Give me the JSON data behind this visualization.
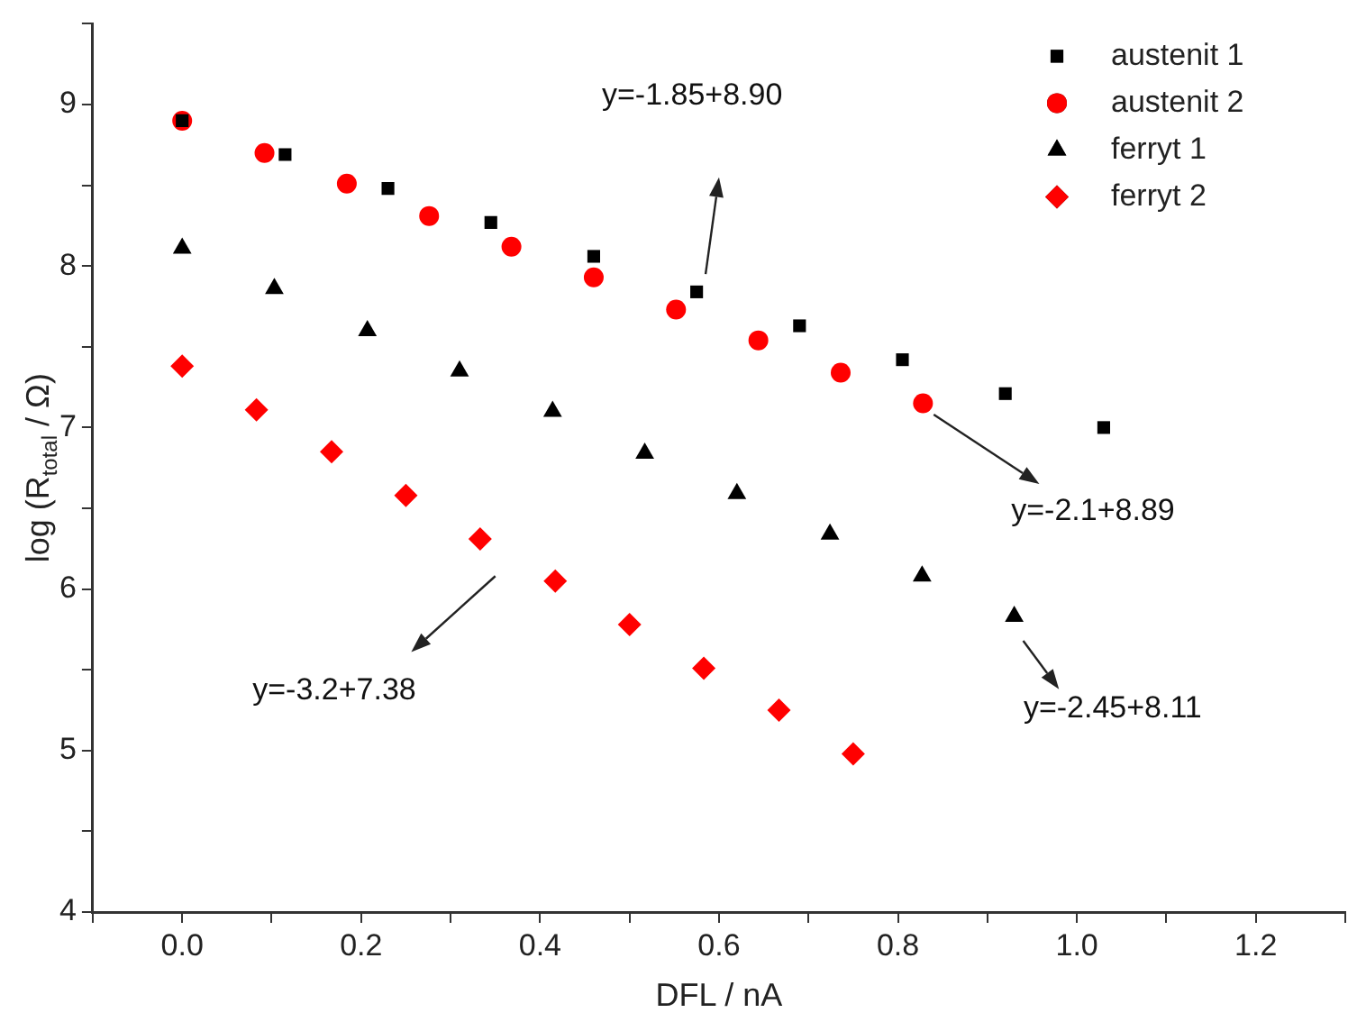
{
  "chart_data": {
    "type": "scatter",
    "xlabel": "DFL / nA",
    "ylabel": "log (R$_{total}$ / Ω)",
    "xlim": [
      -0.1,
      1.3
    ],
    "xticks": [
      {
        "value": -0.1,
        "label": null
      },
      {
        "value": 0,
        "label": "0.0"
      },
      {
        "value": 0.1,
        "label": null
      },
      {
        "value": 0.2,
        "label": "0.2"
      },
      {
        "value": 0.3,
        "label": null
      },
      {
        "value": 0.4,
        "label": "0.4"
      },
      {
        "value": 0.5,
        "label": null
      },
      {
        "value": 0.6,
        "label": "0.6"
      },
      {
        "value": 0.7,
        "label": null
      },
      {
        "value": 0.8,
        "label": "0.8"
      },
      {
        "value": 0.9,
        "label": null
      },
      {
        "value": 1.0,
        "label": "1.0"
      },
      {
        "value": 1.1,
        "label": null
      },
      {
        "value": 1.2,
        "label": "1.2"
      },
      {
        "value": 1.3,
        "label": null
      }
    ],
    "ylim": [
      4,
      9.5
    ],
    "yticks": [
      4,
      {
        "value": 4.5,
        "label": null
      },
      5,
      {
        "value": 5.5,
        "label": null
      },
      6,
      {
        "value": 6.5,
        "label": null
      },
      7,
      {
        "value": 7.5,
        "label": null
      },
      8,
      {
        "value": 8.5,
        "label": null
      },
      9,
      {
        "value": 9.5,
        "label": null
      }
    ],
    "series": [
      {
        "name": "austenit 1",
        "color": "#000000",
        "marker": "square",
        "x": [
          0,
          0.115,
          0.23,
          0.345,
          0.46,
          0.575,
          0.69,
          0.805,
          0.92,
          1.03
        ],
        "values": [
          8.9,
          8.69,
          8.48,
          8.27,
          8.06,
          7.84,
          7.63,
          7.42,
          7.21,
          7.0
        ]
      },
      {
        "name": "austenit 2",
        "color": "#ff0000",
        "marker": "circle",
        "x": [
          0,
          0.092,
          0.184,
          0.276,
          0.368,
          0.46,
          0.552,
          0.644,
          0.736,
          0.828
        ],
        "values": [
          8.9,
          8.7,
          8.51,
          8.31,
          8.12,
          7.93,
          7.73,
          7.54,
          7.34,
          7.15
        ]
      },
      {
        "name": "ferryt 1",
        "color": "#000000",
        "marker": "triangle",
        "x": [
          0,
          0.103,
          0.207,
          0.31,
          0.414,
          0.517,
          0.62,
          0.724,
          0.827,
          0.93
        ],
        "values": [
          8.11,
          7.86,
          7.6,
          7.35,
          7.1,
          6.84,
          6.59,
          6.34,
          6.08,
          5.83
        ]
      },
      {
        "name": "ferryt 2",
        "color": "#ff0000",
        "marker": "diamond",
        "x": [
          0,
          0.083,
          0.167,
          0.25,
          0.333,
          0.417,
          0.5,
          0.583,
          0.667,
          0.75
        ],
        "values": [
          7.38,
          7.11,
          6.85,
          6.58,
          6.31,
          6.05,
          5.78,
          5.51,
          5.25,
          4.98
        ]
      }
    ],
    "annotations": [
      "y=-1.85+8.90",
      {
        "text": "y=-2.1+8.89",
        "x": 0.828,
        "y": 7.15
      },
      "y=-2.45+8.11",
      "y=-3.2+7.38"
    ],
    "legend": "top right",
    "grid": false
  }
}
